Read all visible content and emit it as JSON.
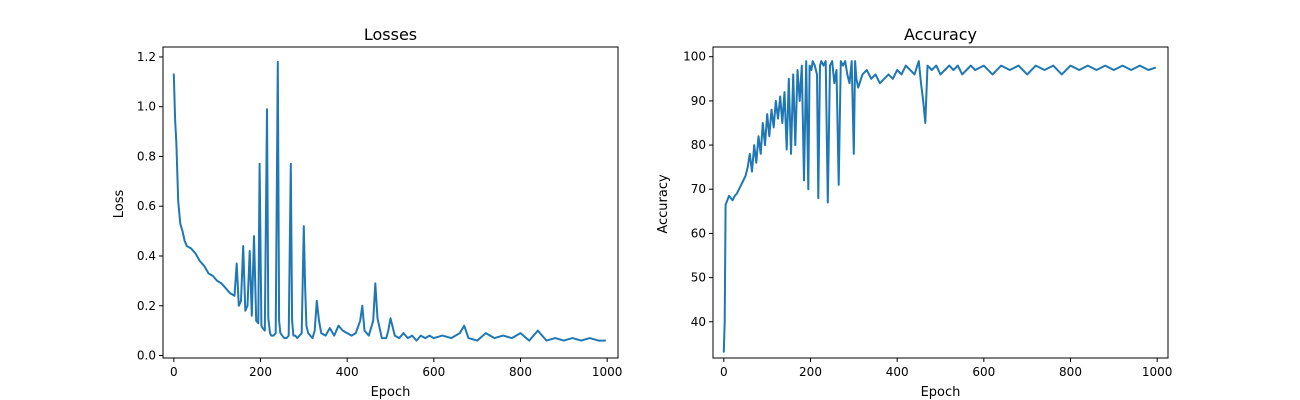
{
  "figure": {
    "background": "#ffffff"
  },
  "chart_data": [
    {
      "type": "line",
      "title": "Losses",
      "xlabel": "Epoch",
      "ylabel": "Loss",
      "xlim": [
        -25,
        1025
      ],
      "ylim": [
        -0.01,
        1.24
      ],
      "xticks": [
        0,
        200,
        400,
        600,
        800,
        1000
      ],
      "xtick_labels": [
        "0",
        "200",
        "400",
        "600",
        "800",
        "1000"
      ],
      "yticks": [
        0.0,
        0.2,
        0.4,
        0.6,
        0.8,
        1.0,
        1.2
      ],
      "ytick_labels": [
        "0.0",
        "0.2",
        "0.4",
        "0.6",
        "0.8",
        "1.0",
        "1.2"
      ],
      "grid": false,
      "series": [
        {
          "color": "#1f77b4",
          "x": [
            0,
            3,
            6,
            10,
            15,
            20,
            25,
            30,
            40,
            50,
            60,
            70,
            80,
            90,
            100,
            110,
            120,
            130,
            140,
            145,
            150,
            155,
            160,
            165,
            170,
            175,
            180,
            185,
            190,
            195,
            198,
            202,
            205,
            210,
            215,
            218,
            222,
            225,
            230,
            235,
            240,
            243,
            246,
            250,
            255,
            260,
            265,
            270,
            273,
            276,
            280,
            285,
            290,
            295,
            300,
            303,
            306,
            310,
            315,
            320,
            325,
            330,
            335,
            340,
            350,
            360,
            370,
            380,
            390,
            400,
            410,
            420,
            430,
            435,
            440,
            450,
            460,
            465,
            470,
            480,
            490,
            495,
            500,
            510,
            520,
            530,
            540,
            550,
            560,
            570,
            580,
            590,
            600,
            620,
            640,
            660,
            670,
            680,
            700,
            720,
            740,
            760,
            780,
            800,
            820,
            840,
            860,
            880,
            900,
            920,
            940,
            960,
            980,
            995
          ],
          "y": [
            1.13,
            0.95,
            0.85,
            0.62,
            0.53,
            0.5,
            0.46,
            0.44,
            0.43,
            0.41,
            0.38,
            0.36,
            0.33,
            0.32,
            0.3,
            0.29,
            0.27,
            0.25,
            0.24,
            0.37,
            0.2,
            0.22,
            0.44,
            0.18,
            0.2,
            0.42,
            0.16,
            0.48,
            0.14,
            0.13,
            0.77,
            0.12,
            0.11,
            0.1,
            0.99,
            0.15,
            0.09,
            0.08,
            0.08,
            0.09,
            1.18,
            0.14,
            0.09,
            0.08,
            0.07,
            0.07,
            0.08,
            0.77,
            0.14,
            0.08,
            0.08,
            0.07,
            0.08,
            0.09,
            0.52,
            0.28,
            0.12,
            0.09,
            0.08,
            0.07,
            0.1,
            0.22,
            0.14,
            0.09,
            0.08,
            0.11,
            0.08,
            0.12,
            0.1,
            0.09,
            0.08,
            0.09,
            0.14,
            0.2,
            0.1,
            0.08,
            0.14,
            0.29,
            0.15,
            0.07,
            0.07,
            0.1,
            0.15,
            0.08,
            0.07,
            0.09,
            0.07,
            0.08,
            0.06,
            0.08,
            0.07,
            0.08,
            0.07,
            0.08,
            0.07,
            0.09,
            0.12,
            0.07,
            0.06,
            0.09,
            0.07,
            0.08,
            0.07,
            0.09,
            0.06,
            0.1,
            0.06,
            0.07,
            0.06,
            0.07,
            0.06,
            0.07,
            0.06,
            0.06
          ]
        }
      ]
    },
    {
      "type": "line",
      "title": "Accuracy",
      "xlabel": "Epoch",
      "ylabel": "Accuracy",
      "xlim": [
        -25,
        1025
      ],
      "ylim": [
        31.8,
        102.2
      ],
      "xticks": [
        0,
        200,
        400,
        600,
        800,
        1000
      ],
      "xtick_labels": [
        "0",
        "200",
        "400",
        "600",
        "800",
        "1000"
      ],
      "yticks": [
        40,
        50,
        60,
        70,
        80,
        90,
        100
      ],
      "ytick_labels": [
        "40",
        "50",
        "60",
        "70",
        "80",
        "90",
        "100"
      ],
      "grid": false,
      "series": [
        {
          "color": "#1f77b4",
          "x": [
            0,
            2,
            4,
            8,
            12,
            16,
            20,
            25,
            30,
            40,
            50,
            55,
            60,
            65,
            70,
            75,
            80,
            85,
            90,
            95,
            100,
            105,
            110,
            115,
            120,
            125,
            130,
            135,
            140,
            145,
            150,
            155,
            160,
            165,
            170,
            175,
            180,
            185,
            190,
            195,
            198,
            202,
            205,
            210,
            215,
            218,
            222,
            225,
            230,
            235,
            240,
            245,
            250,
            255,
            260,
            265,
            270,
            275,
            280,
            285,
            290,
            295,
            300,
            303,
            306,
            310,
            320,
            330,
            340,
            350,
            360,
            370,
            380,
            390,
            400,
            410,
            420,
            430,
            440,
            450,
            455,
            460,
            465,
            470,
            480,
            490,
            500,
            510,
            520,
            530,
            540,
            550,
            560,
            570,
            580,
            600,
            620,
            640,
            660,
            680,
            700,
            720,
            740,
            760,
            780,
            800,
            820,
            840,
            860,
            880,
            900,
            920,
            940,
            960,
            980,
            995
          ],
          "y": [
            33.2,
            40,
            66.5,
            67.5,
            68.5,
            68,
            67.5,
            68.5,
            69,
            71,
            73,
            75,
            78,
            74,
            80,
            76,
            82,
            78,
            85,
            80,
            87,
            82,
            88,
            84,
            90,
            86,
            91,
            85,
            92,
            79,
            95,
            78,
            96,
            80,
            97,
            90,
            98,
            72,
            99,
            70,
            98,
            97,
            99,
            98,
            96,
            68,
            98,
            99,
            98,
            99,
            67,
            98,
            99,
            94,
            97,
            71,
            99,
            98,
            99,
            96,
            94,
            99,
            78,
            99,
            95,
            93,
            96,
            97,
            95,
            96,
            94,
            95,
            96,
            95,
            97,
            96,
            98,
            97,
            96,
            99,
            94,
            90,
            85,
            98,
            97,
            98,
            96,
            97,
            98,
            97,
            98,
            96,
            97,
            98,
            97,
            98,
            96,
            98,
            97,
            98,
            96,
            98,
            97,
            98,
            96,
            98,
            97,
            98,
            97,
            98,
            97,
            98,
            97,
            98,
            97,
            97.5
          ]
        }
      ]
    }
  ]
}
